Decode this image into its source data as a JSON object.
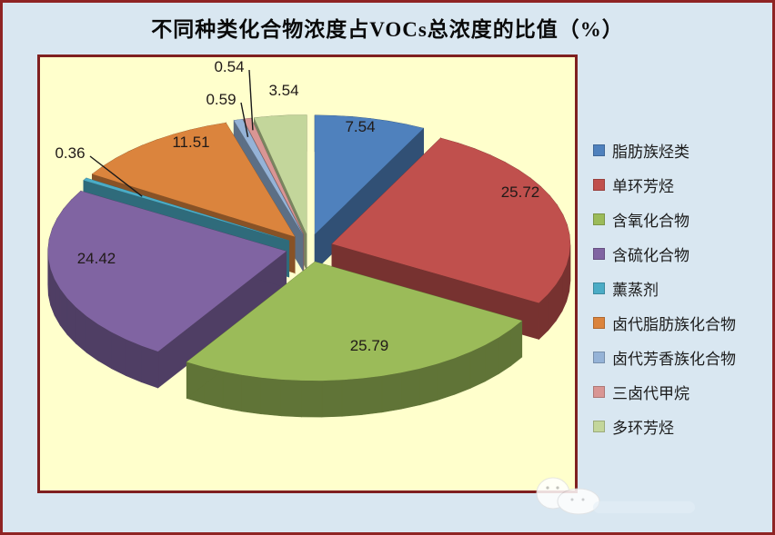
{
  "title": "不同种类化合物浓度占VOCs总浓度的比值（%）",
  "colors": {
    "page_bg": "#D9E7F1",
    "frame_border": "#8F2424",
    "plot_bg": "#FFFFCC",
    "plot_border": "#7F2020",
    "value_label_color": "#201a18",
    "legend_text_color": "#1b1b1b"
  },
  "chart_data": {
    "type": "pie",
    "style": "3d-exploded",
    "title": "不同种类化合物浓度占VOCs总浓度的比值（%）",
    "unit": "%",
    "start_angle_deg": 0,
    "direction": "clockwise",
    "legend_position": "right",
    "slices": [
      {
        "label": "脂肪族烃类",
        "value": 7.54,
        "color": "#4F81BD"
      },
      {
        "label": "单环芳烃",
        "value": 25.72,
        "color": "#C0504D"
      },
      {
        "label": "含氧化合物",
        "value": 25.79,
        "color": "#9BBB59"
      },
      {
        "label": "含硫化合物",
        "value": 24.42,
        "color": "#8064A2"
      },
      {
        "label": "薰蒸剂",
        "value": 0.36,
        "color": "#4BACC6"
      },
      {
        "label": "卤代脂肪族化合物",
        "value": 11.51,
        "color": "#DB843D"
      },
      {
        "label": "卤代芳香族化合物",
        "value": 0.59,
        "color": "#95B3D7"
      },
      {
        "label": "三卤代甲烷",
        "value": 0.54,
        "color": "#D99694"
      },
      {
        "label": "多环芳烃",
        "value": 3.54,
        "color": "#C3D69B"
      }
    ]
  }
}
